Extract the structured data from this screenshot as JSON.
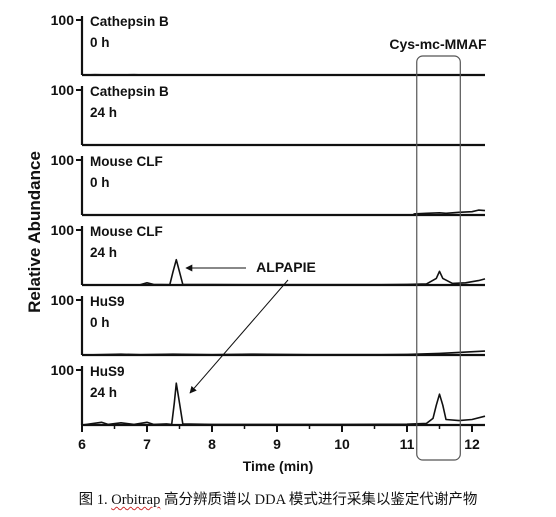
{
  "chart_data": {
    "type": "line",
    "ylabel": "Relative Abundance",
    "xlabel": "Time (min)",
    "xlim": [
      6,
      12.2
    ],
    "ylim": [
      0,
      100
    ],
    "x_ticks": [
      6,
      7,
      8,
      9,
      10,
      11,
      12
    ],
    "y_tick_label": "100",
    "panels": [
      {
        "sample": "Cathepsin B",
        "time": "0 h",
        "points": [
          [
            6,
            0
          ],
          [
            6.2,
            0.5
          ],
          [
            6.5,
            0
          ],
          [
            6.8,
            0.6
          ],
          [
            7.0,
            0
          ],
          [
            7.5,
            0.3
          ],
          [
            8.5,
            0.2
          ],
          [
            9.5,
            0.3
          ],
          [
            10.5,
            0.2
          ],
          [
            11.5,
            0.3
          ],
          [
            12.2,
            0.2
          ]
        ]
      },
      {
        "sample": "Cathepsin B",
        "time": "24 h",
        "points": [
          [
            6,
            0
          ],
          [
            7,
            0.3
          ],
          [
            8,
            0
          ],
          [
            9,
            0.3
          ],
          [
            10,
            0
          ],
          [
            11,
            0.3
          ],
          [
            12.2,
            0
          ]
        ]
      },
      {
        "sample": "Mouse CLF",
        "time": "0 h",
        "points": [
          [
            11.1,
            2
          ],
          [
            11.3,
            3
          ],
          [
            11.5,
            4
          ],
          [
            11.6,
            3
          ],
          [
            11.8,
            5
          ],
          [
            12.0,
            6
          ],
          [
            12.1,
            9
          ],
          [
            12.2,
            8
          ]
        ]
      },
      {
        "sample": "Mouse CLF",
        "time": "24 h",
        "points": [
          [
            6,
            0
          ],
          [
            6.9,
            0.5
          ],
          [
            7.0,
            4
          ],
          [
            7.1,
            1
          ],
          [
            7.35,
            0.5
          ],
          [
            7.4,
            24
          ],
          [
            7.45,
            46
          ],
          [
            7.5,
            24
          ],
          [
            7.55,
            1
          ],
          [
            8.5,
            0.5
          ],
          [
            9.5,
            0.5
          ],
          [
            10.5,
            0.5
          ],
          [
            11.0,
            1
          ],
          [
            11.3,
            2
          ],
          [
            11.45,
            12
          ],
          [
            11.5,
            25
          ],
          [
            11.55,
            12
          ],
          [
            11.7,
            3
          ],
          [
            11.9,
            4
          ],
          [
            12.1,
            8
          ],
          [
            12.2,
            11
          ]
        ]
      },
      {
        "sample": "HuS9",
        "time": "0 h",
        "points": [
          [
            6,
            0
          ],
          [
            6.6,
            1.5
          ],
          [
            6.9,
            0.5
          ],
          [
            7.4,
            1.5
          ],
          [
            8,
            0.5
          ],
          [
            8.6,
            1.5
          ],
          [
            9.5,
            0.5
          ],
          [
            10.5,
            0.5
          ],
          [
            11,
            1
          ],
          [
            11.5,
            3
          ],
          [
            12.2,
            7
          ]
        ]
      },
      {
        "sample": "HuS9",
        "time": "24 h",
        "points": [
          [
            6,
            0
          ],
          [
            6.3,
            5
          ],
          [
            6.4,
            1
          ],
          [
            6.6,
            4
          ],
          [
            6.8,
            1
          ],
          [
            7.0,
            5
          ],
          [
            7.1,
            1
          ],
          [
            7.3,
            2
          ],
          [
            7.38,
            1
          ],
          [
            7.42,
            40
          ],
          [
            7.45,
            76
          ],
          [
            7.5,
            40
          ],
          [
            7.55,
            2
          ],
          [
            8.0,
            1
          ],
          [
            9,
            1
          ],
          [
            10,
            1
          ],
          [
            11,
            1.5
          ],
          [
            11.3,
            3
          ],
          [
            11.4,
            12
          ],
          [
            11.45,
            36
          ],
          [
            11.5,
            56
          ],
          [
            11.55,
            36
          ],
          [
            11.6,
            10
          ],
          [
            11.8,
            8
          ],
          [
            12.0,
            10
          ],
          [
            12.2,
            16
          ]
        ]
      }
    ],
    "annotations": [
      {
        "text": "Cys-mc-MMAF",
        "type": "box",
        "x_range": [
          11.15,
          11.82
        ]
      },
      {
        "text": "ALPAPIE",
        "type": "arrow"
      }
    ]
  },
  "caption": {
    "prefix": "图 1. ",
    "orbitrap": "Orbitrap",
    "suffix": " 高分辨质谱以 DDA 模式进行采集以鉴定代谢产物"
  }
}
